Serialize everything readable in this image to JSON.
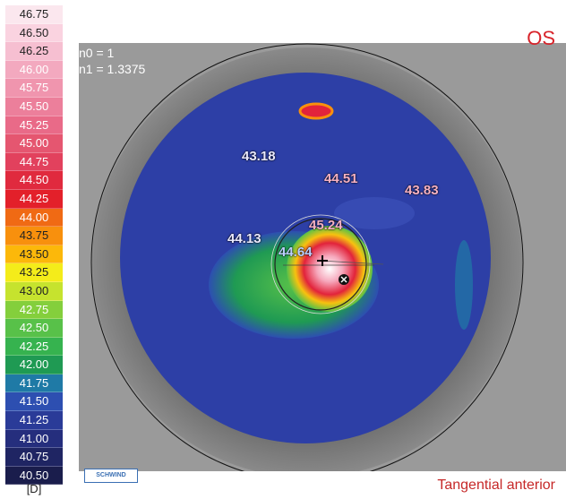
{
  "scale": [
    {
      "label": "46.75",
      "color": "#fbe7ee"
    },
    {
      "label": "46.50",
      "color": "#fad3e0"
    },
    {
      "label": "46.25",
      "color": "#f6bfd1"
    },
    {
      "label": "46.00",
      "color": "#f3a9bf"
    },
    {
      "label": "45.75",
      "color": "#f095ae"
    },
    {
      "label": "45.50",
      "color": "#ec7f9b"
    },
    {
      "label": "45.25",
      "color": "#e96a88"
    },
    {
      "label": "45.00",
      "color": "#e55670"
    },
    {
      "label": "44.75",
      "color": "#e2415d"
    },
    {
      "label": "44.50",
      "color": "#e02a3e"
    },
    {
      "label": "44.25",
      "color": "#e3202a"
    },
    {
      "label": "44.00",
      "color": "#f06a14"
    },
    {
      "label": "43.75",
      "color": "#f8900d"
    },
    {
      "label": "43.50",
      "color": "#fcb80a"
    },
    {
      "label": "43.25",
      "color": "#f4ec1a"
    },
    {
      "label": "43.00",
      "color": "#c6e32e"
    },
    {
      "label": "42.75",
      "color": "#84cf3c"
    },
    {
      "label": "42.50",
      "color": "#58c149"
    },
    {
      "label": "42.25",
      "color": "#36b34f"
    },
    {
      "label": "42.00",
      "color": "#1f9a53"
    },
    {
      "label": "41.75",
      "color": "#1f7aa6"
    },
    {
      "label": "41.50",
      "color": "#2d4fb1"
    },
    {
      "label": "41.25",
      "color": "#2a3b98"
    },
    {
      "label": "41.00",
      "color": "#252e7d"
    },
    {
      "label": "40.75",
      "color": "#1f2563"
    },
    {
      "label": "40.50",
      "color": "#1a1d4c"
    }
  ],
  "unit": "[D]",
  "indices": {
    "n0": "n0 = 1",
    "n1": "n1 = 1.3375"
  },
  "eye": "OS",
  "map_type": "Tangential anterior",
  "logo": "SCHWIND",
  "values": [
    {
      "text": "43.18",
      "color": "#e9e9ff"
    },
    {
      "text": "44.51",
      "color": "#f7b2c4"
    },
    {
      "text": "43.83",
      "color": "#f7b2c4"
    },
    {
      "text": "44.13",
      "color": "#e9e9ff"
    },
    {
      "text": "45.24",
      "color": "#f7b2c4"
    },
    {
      "text": "44.64",
      "color": "#bcd0ff"
    }
  ]
}
